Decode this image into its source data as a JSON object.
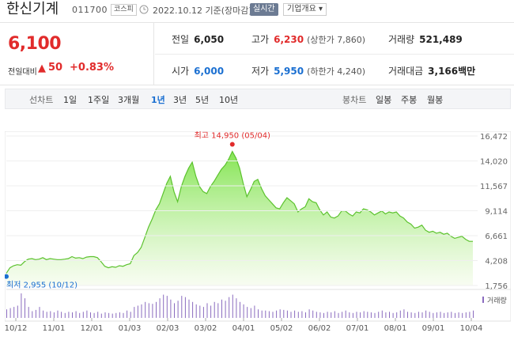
{
  "header": {
    "stock_name": "한신기계",
    "stock_code": "011700",
    "market": "코스피",
    "date_label": "2022.10.12 기준(장마감)",
    "realtime_label": "실시간",
    "company_info_label": "기업개요 ▾"
  },
  "price": {
    "current": "6,100",
    "compare_label": "전일대비",
    "change_arrow": "▲",
    "change": "50",
    "change_pct": "+0.83%"
  },
  "stats": {
    "prev_close": {
      "label": "전일",
      "value": "6,050"
    },
    "high": {
      "label": "고가",
      "value": "6,230",
      "sub": "(상한가 7,860)"
    },
    "volume": {
      "label": "거래량",
      "value": "521,489"
    },
    "open": {
      "label": "시가",
      "value": "6,000"
    },
    "low": {
      "label": "저가",
      "value": "5,950",
      "sub": "(하한가 4,240)"
    },
    "trade_value": {
      "label": "거래대금",
      "value": "3,166",
      "unit": "백만"
    }
  },
  "periods": {
    "line_chart_label": "선차트",
    "line_items": [
      "1일",
      "1주일",
      "3개월",
      "1년",
      "3년",
      "5년",
      "10년"
    ],
    "active": "1년",
    "candle_chart_label": "봉차트",
    "candle_items": [
      "일봉",
      "주봉",
      "월봉"
    ]
  },
  "colors": {
    "up": "#e12b2b",
    "down": "#1a6fd1",
    "area_fill_top": "#7ee34a",
    "area_fill_bottom": "#f3fbe9",
    "line": "#5cc22e",
    "volume_bar": "#8a6bbf"
  },
  "chart_data": {
    "type": "area",
    "y_ticks": [
      "16,472",
      "14,020",
      "11,567",
      "9,114",
      "6,661",
      "4,208",
      "1,756"
    ],
    "ylim": [
      1756,
      16472
    ],
    "x_ticks": [
      "10/12",
      "11/01",
      "12/01",
      "01/03",
      "02/03",
      "03/02",
      "04/01",
      "05/02",
      "06/02",
      "07/01",
      "08/01",
      "09/01",
      "10/04"
    ],
    "high_annotation": "최고 14,950 (05/04)",
    "low_annotation": "최저 2,955 (10/12)",
    "volume_legend": "거래량",
    "series": [
      {
        "values": [
          2955,
          3500,
          3700,
          3800,
          3750,
          4100,
          4350,
          4400,
          4300,
          4350,
          4500,
          4300,
          4400,
          4350,
          4300,
          4300,
          4350,
          4400,
          4600,
          4450,
          4500,
          4400,
          4550,
          4600,
          4600,
          4500,
          4100,
          3650,
          3500,
          3600,
          3550,
          3700,
          3650,
          3800,
          3900,
          4700,
          5000,
          5500,
          6500,
          7500,
          8300,
          9200,
          9800,
          10800,
          11800,
          12500,
          11000,
          10000,
          11500,
          12500,
          13300,
          13900,
          12500,
          11500,
          11000,
          10800,
          11500,
          12000,
          12600,
          13200,
          13600,
          14200,
          14950,
          14300,
          13300,
          11800,
          10500,
          11200,
          12000,
          12200,
          11300,
          10600,
          10200,
          9800,
          9400,
          9300,
          9900,
          10400,
          10100,
          9800,
          9000,
          9300,
          9500,
          10300,
          10000,
          9900,
          9200,
          8700,
          9000,
          8500,
          8400,
          8600,
          9100,
          9100,
          8800,
          8600,
          9000,
          8900,
          9300,
          9200,
          9000,
          8700,
          8900,
          9100,
          8800,
          9000,
          8900,
          9000,
          8600,
          8400,
          8000,
          7800,
          7400,
          7500,
          7700,
          7200,
          7000,
          7100,
          6900,
          7000,
          6800,
          6900,
          6600,
          6400,
          6500,
          6600,
          6300,
          6100,
          6100
        ]
      }
    ],
    "volume": [
      14,
      16,
      18,
      20,
      40,
      32,
      18,
      11,
      13,
      18,
      12,
      10,
      11,
      9,
      12,
      10,
      8,
      10,
      9,
      11,
      8,
      10,
      12,
      9,
      8,
      10,
      7,
      9,
      8,
      7,
      8,
      9,
      8,
      12,
      10,
      18,
      20,
      22,
      26,
      24,
      23,
      26,
      32,
      38,
      36,
      30,
      24,
      28,
      36,
      34,
      30,
      26,
      22,
      20,
      18,
      24,
      20,
      26,
      24,
      30,
      28,
      34,
      38,
      32,
      26,
      22,
      18,
      16,
      20,
      14,
      12,
      12,
      11,
      10,
      12,
      14,
      13,
      12,
      10,
      12,
      10,
      11,
      9,
      14,
      12,
      10,
      9,
      8,
      10,
      9,
      11,
      8,
      10,
      12,
      9,
      8,
      10,
      9,
      11,
      10,
      9,
      8,
      10,
      12,
      9,
      10,
      8,
      9,
      12,
      14,
      10,
      9,
      8,
      10,
      9,
      12,
      10,
      8,
      9,
      10,
      8,
      9,
      10,
      8,
      9,
      8,
      9,
      10,
      12
    ]
  }
}
